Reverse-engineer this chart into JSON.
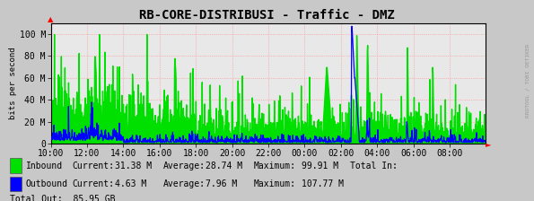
{
  "title": "RB-CORE-DISTRIBUSI - Traffic - DMZ",
  "ylabel": "bits per second",
  "bg_color": "#c8c8c8",
  "plot_bg_color": "#e8e8e8",
  "x_ticks_labels": [
    "10:00",
    "12:00",
    "14:00",
    "16:00",
    "18:00",
    "20:00",
    "22:00",
    "00:00",
    "02:00",
    "04:00",
    "06:00",
    "08:00"
  ],
  "y_ticks": [
    0,
    20000000,
    40000000,
    60000000,
    80000000,
    100000000
  ],
  "y_tick_labels": [
    "0",
    "20 M",
    "40 M",
    "60 M",
    "80 M",
    "100 M"
  ],
  "ylim": [
    0,
    110000000
  ],
  "inbound_color": "#00e000",
  "outbound_color": "#0000ff",
  "legend_inbound": "Inbound",
  "legend_outbound": "Outbound",
  "legend_inbound_current": "31.38 M",
  "legend_inbound_average": "28.74 M",
  "legend_inbound_maximum": "99.91 M",
  "legend_inbound_total": "Total In:",
  "legend_outbound_current": "4.63 M",
  "legend_outbound_average": "7.96 M",
  "legend_outbound_maximum": "107.77 M",
  "legend_total_out": "Total Out:  85.95 GB",
  "watermark": "RRDTOOL / TOBI OETIKER",
  "title_fontsize": 10,
  "axis_fontsize": 7.0,
  "legend_fontsize": 7.0
}
